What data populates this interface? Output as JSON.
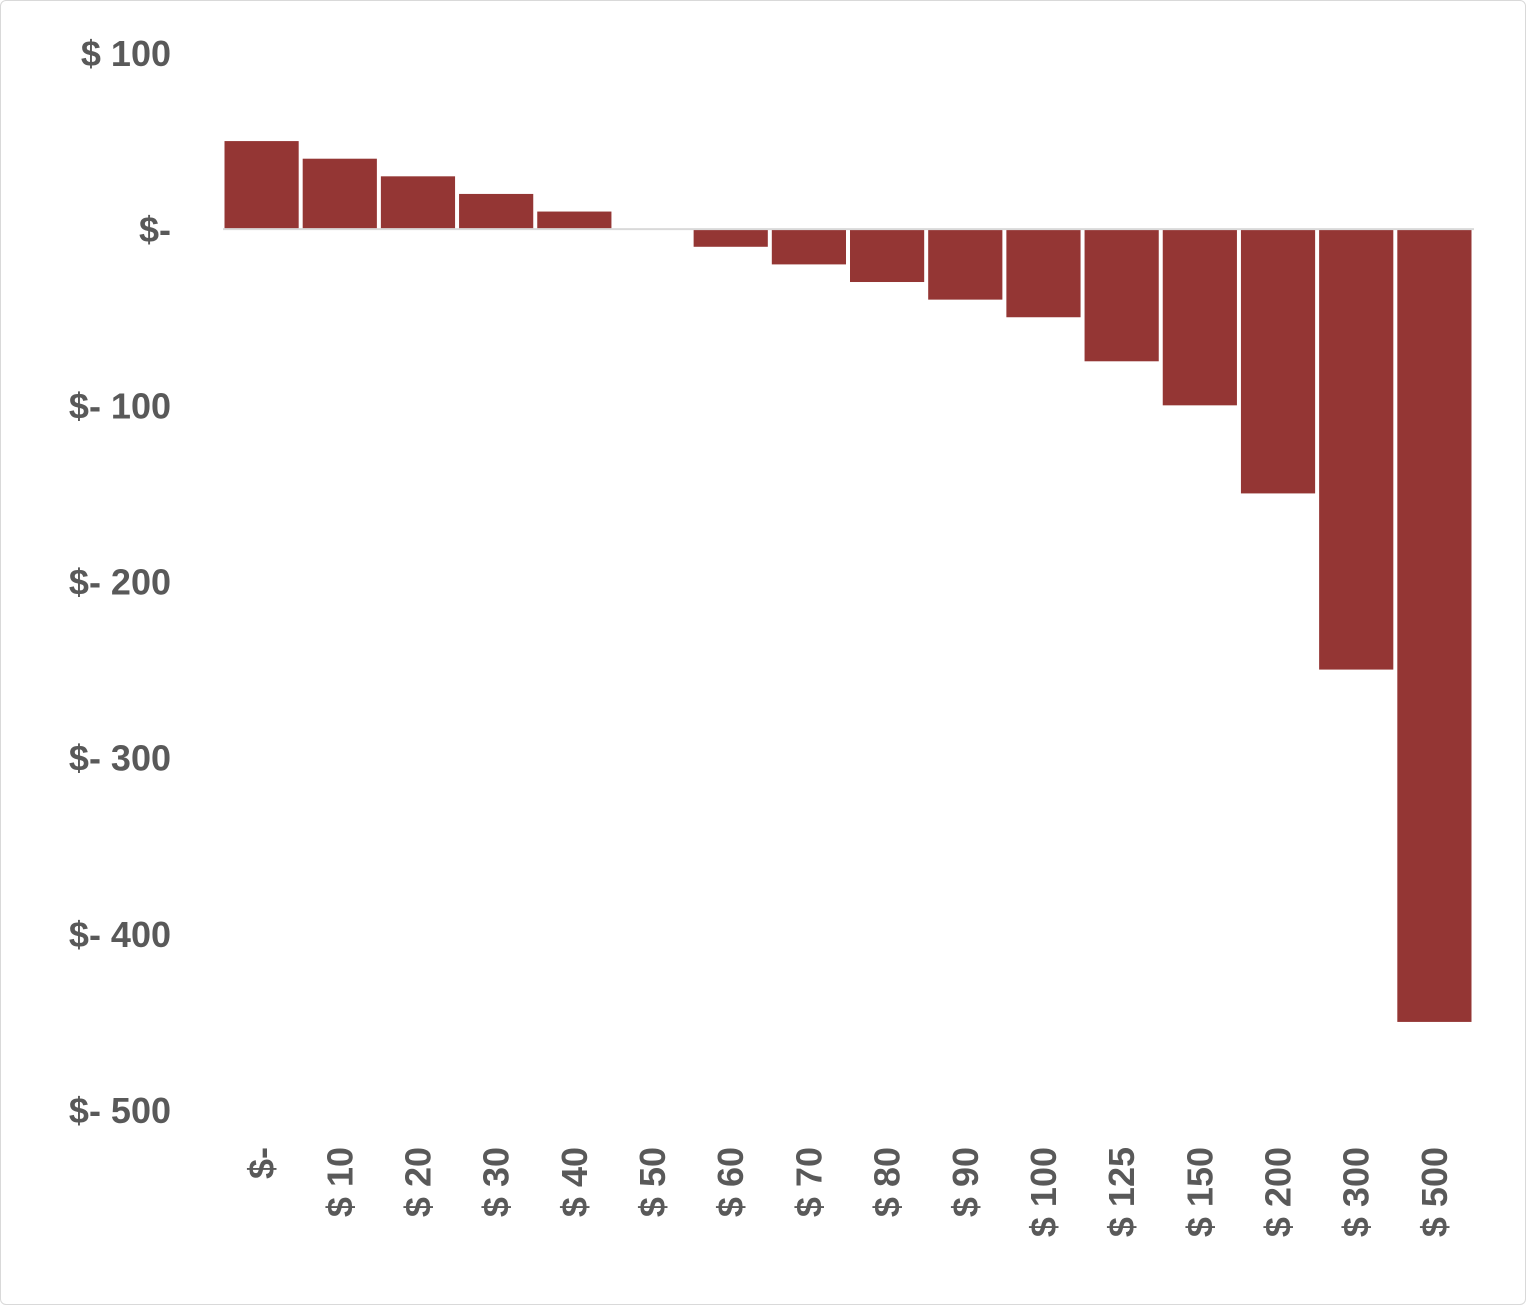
{
  "chart_data": {
    "type": "bar",
    "title": "",
    "xlabel": "",
    "ylabel": "",
    "categories": [
      "$-",
      "$ 10",
      "$ 20",
      "$ 30",
      "$ 40",
      "$ 50",
      "$ 60",
      "$ 70",
      "$ 80",
      "$ 90",
      "$ 100",
      "$ 125",
      "$ 150",
      "$ 200",
      "$ 300",
      "$ 500"
    ],
    "values": [
      50,
      40,
      30,
      20,
      10,
      0,
      -10,
      -20,
      -30,
      -40,
      -50,
      -75,
      -100,
      -150,
      -250,
      -450
    ],
    "ylim": [
      -500,
      100
    ],
    "yticks": [
      100,
      0,
      -100,
      -200,
      -300,
      -400,
      -500
    ],
    "ytick_labels": [
      "$ 100",
      "$-",
      "$- 100",
      "$- 200",
      "$- 300",
      "$- 400",
      "$- 500"
    ],
    "grid": false,
    "legend": "none",
    "bar_color": "#943634",
    "axis_color": "#d9d9d9",
    "text_color": "#595959"
  }
}
